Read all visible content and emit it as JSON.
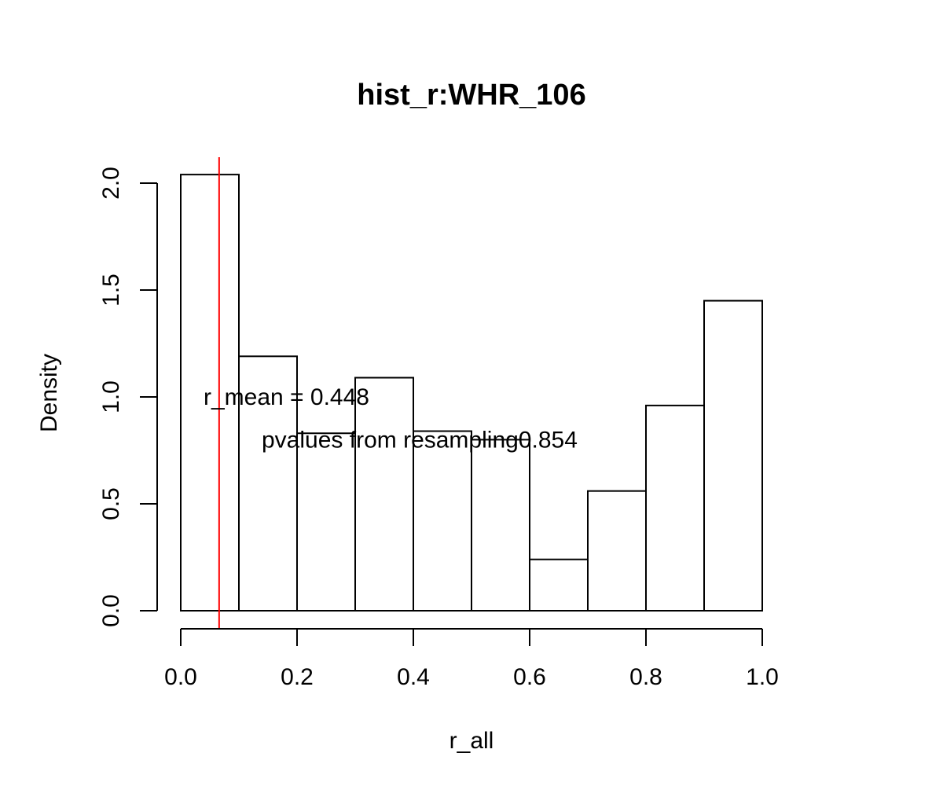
{
  "chart_data": {
    "type": "bar",
    "title": "hist_r:WHR_106",
    "xlabel": "r_all",
    "ylabel": "Density",
    "xlim": [
      0.0,
      1.0
    ],
    "ylim": [
      0.0,
      2.0
    ],
    "x_ticks": [
      "0.0",
      "0.2",
      "0.4",
      "0.6",
      "0.8",
      "1.0"
    ],
    "y_ticks": [
      "0.0",
      "0.5",
      "1.0",
      "1.5",
      "2.0"
    ],
    "bins": [
      {
        "start": 0.0,
        "end": 0.1,
        "density": 2.04
      },
      {
        "start": 0.1,
        "end": 0.2,
        "density": 1.19
      },
      {
        "start": 0.2,
        "end": 0.3,
        "density": 0.83
      },
      {
        "start": 0.3,
        "end": 0.4,
        "density": 1.09
      },
      {
        "start": 0.4,
        "end": 0.5,
        "density": 0.84
      },
      {
        "start": 0.5,
        "end": 0.6,
        "density": 0.8
      },
      {
        "start": 0.6,
        "end": 0.7,
        "density": 0.24
      },
      {
        "start": 0.7,
        "end": 0.8,
        "density": 0.56
      },
      {
        "start": 0.8,
        "end": 0.9,
        "density": 0.96
      },
      {
        "start": 0.9,
        "end": 1.0,
        "density": 1.45
      }
    ],
    "reference_line": {
      "x": 0.066,
      "color": "#ff0000"
    },
    "annotations": [
      {
        "text": "r_mean = 0.448",
        "x": 0.0,
        "y": 1.0
      },
      {
        "text": "pvalues from resampling0.854",
        "x": 0.1,
        "y": 0.8
      }
    ],
    "grid": false,
    "legend": "none",
    "bar_fill": "#ffffff",
    "bar_stroke": "#000000"
  }
}
